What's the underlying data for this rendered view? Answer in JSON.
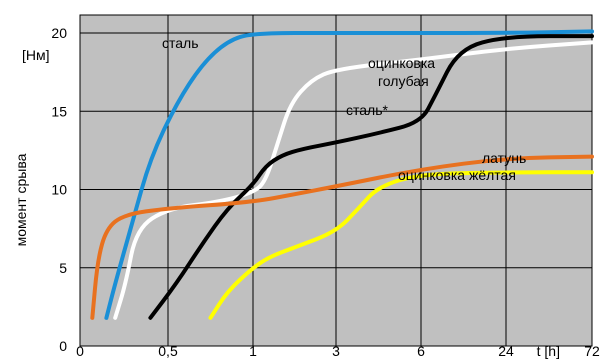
{
  "chart_data": {
    "type": "line",
    "title": "",
    "ylabel": "момент срыва",
    "yunit": "[Нм]",
    "xlabel": "t [h]",
    "x_ticks": [
      "0",
      "0,5",
      "1",
      "3",
      "6",
      "24",
      "72"
    ],
    "y_ticks": [
      0,
      5,
      10,
      15,
      20
    ],
    "ylim": [
      0,
      20
    ],
    "xlim": [
      0,
      72
    ],
    "x_scale": "categorical-nonlinear",
    "grid": true,
    "background": "#c0c0c0",
    "series": [
      {
        "name": "сталь",
        "color": "#1a8fd6",
        "points": [
          [
            0.15,
            1.8
          ],
          [
            0.2,
            4
          ],
          [
            0.3,
            8
          ],
          [
            0.4,
            12
          ],
          [
            0.55,
            15.5
          ],
          [
            0.7,
            18
          ],
          [
            0.85,
            19.5
          ],
          [
            1,
            20
          ],
          [
            3,
            20
          ],
          [
            6,
            20
          ],
          [
            24,
            20
          ],
          [
            72,
            20.1
          ]
        ]
      },
      {
        "name": "оцинковка голубая",
        "color": "#ffffff",
        "points": [
          [
            0.2,
            1.8
          ],
          [
            0.26,
            4
          ],
          [
            0.32,
            7.5
          ],
          [
            0.5,
            8.8
          ],
          [
            0.8,
            9.2
          ],
          [
            1,
            9.8
          ],
          [
            1.3,
            10.5
          ],
          [
            1.6,
            13
          ],
          [
            1.9,
            15.5
          ],
          [
            2.4,
            17
          ],
          [
            3,
            17.7
          ],
          [
            6,
            18.3
          ],
          [
            24,
            19
          ],
          [
            72,
            19.4
          ]
        ]
      },
      {
        "name": "сталь*",
        "color": "#000000",
        "points": [
          [
            0.4,
            1.8
          ],
          [
            0.55,
            4
          ],
          [
            0.7,
            6.5
          ],
          [
            0.85,
            8.8
          ],
          [
            1,
            10.3
          ],
          [
            1.3,
            11.5
          ],
          [
            1.7,
            12.2
          ],
          [
            2.2,
            12.6
          ],
          [
            3,
            13
          ],
          [
            4.5,
            13.6
          ],
          [
            6,
            14.3
          ],
          [
            9,
            16
          ],
          [
            14,
            19
          ],
          [
            24,
            19.8
          ],
          [
            72,
            19.8
          ]
        ]
      },
      {
        "name": "латунь",
        "color": "#e8711f",
        "points": [
          [
            0.07,
            1.8
          ],
          [
            0.1,
            5.5
          ],
          [
            0.15,
            7.5
          ],
          [
            0.25,
            8.4
          ],
          [
            0.5,
            8.8
          ],
          [
            1,
            9.2
          ],
          [
            2,
            9.7
          ],
          [
            3,
            10.2
          ],
          [
            6,
            11.3
          ],
          [
            24,
            12
          ],
          [
            72,
            12.1
          ]
        ]
      },
      {
        "name": "оцинковка жёлтая",
        "color": "#ffff00",
        "points": [
          [
            0.75,
            1.8
          ],
          [
            0.85,
            3.5
          ],
          [
            1,
            5
          ],
          [
            1.4,
            5.7
          ],
          [
            2,
            6.3
          ],
          [
            3,
            7.3
          ],
          [
            3.8,
            8.8
          ],
          [
            4.5,
            10.2
          ],
          [
            6,
            11
          ],
          [
            24,
            11.1
          ],
          [
            72,
            11.1
          ]
        ]
      }
    ]
  }
}
